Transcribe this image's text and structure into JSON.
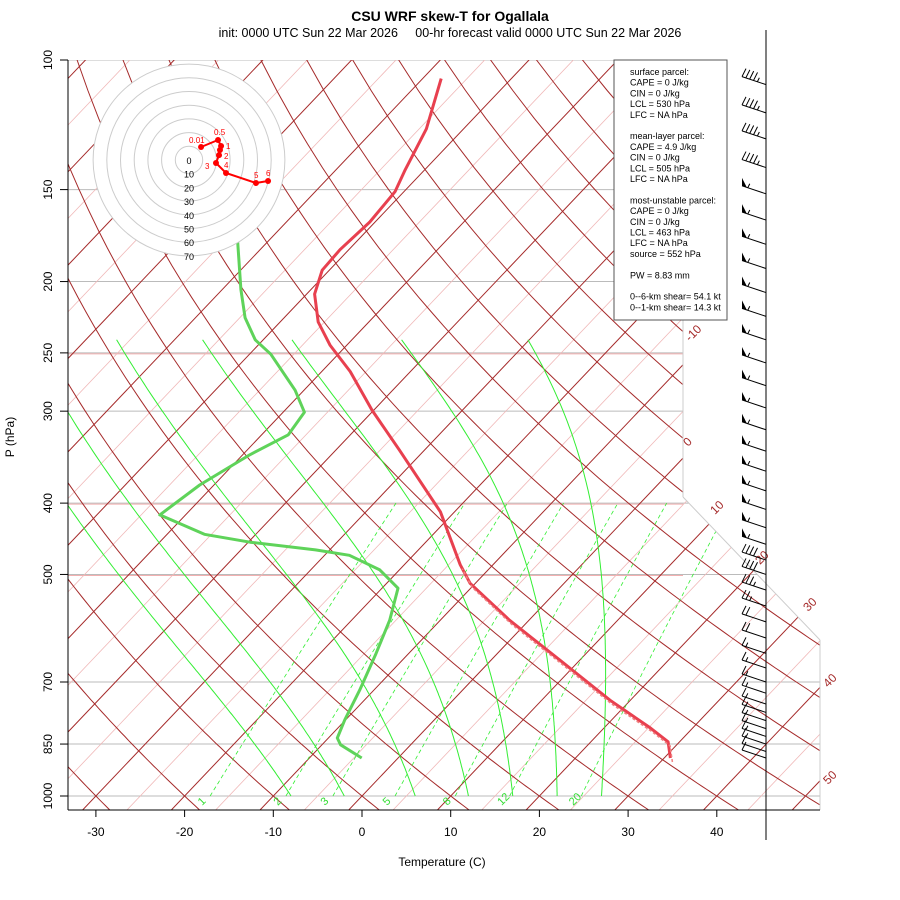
{
  "chart_data": {
    "type": "line",
    "title": "CSU WRF skew-T for Ogallala",
    "subtitle": "init: 0000 UTC Sun 22 Mar 2026     00-hr forecast valid 0000 UTC Sun 22 Mar 2026",
    "xlabel": "Temperature (C)",
    "ylabel": "P (hPa)",
    "xlim": [
      -33,
      50
    ],
    "ylim": [
      1000,
      100
    ],
    "x_ticks": [
      -30,
      -20,
      -10,
      0,
      10,
      20,
      30,
      40
    ],
    "p_ticks": [
      100,
      150,
      200,
      250,
      300,
      400,
      500,
      700,
      850,
      1000
    ],
    "isotherm_labels": [
      -10,
      0,
      10,
      20,
      30,
      40,
      50
    ],
    "mixing_ratio_labels": [
      1,
      2,
      3,
      5,
      8,
      12,
      20
    ],
    "series": [
      {
        "name": "temperature",
        "color": "#e8404f",
        "points": [
          [
            888,
            30.7
          ],
          [
            844,
            28.7
          ],
          [
            808,
            25.2
          ],
          [
            741,
            17.7
          ],
          [
            654,
            7.8
          ],
          [
            577,
            -2.2
          ],
          [
            514,
            -10.6
          ],
          [
            485,
            -13.7
          ],
          [
            411,
            -21.6
          ],
          [
            339,
            -32.8
          ],
          [
            299,
            -40.2
          ],
          [
            265,
            -46.8
          ],
          [
            244,
            -51.9
          ],
          [
            227,
            -55.7
          ],
          [
            208,
            -59.1
          ],
          [
            193,
            -60.8
          ],
          [
            181,
            -61.0
          ],
          [
            166,
            -60.6
          ],
          [
            151,
            -61.0
          ],
          [
            141,
            -62.2
          ],
          [
            124,
            -64.2
          ],
          [
            106,
            -67.9
          ]
        ]
      },
      {
        "name": "dewpoint",
        "color": "#5fd35a",
        "points": [
          [
            888,
            -4.1
          ],
          [
            852,
            -7.9
          ],
          [
            834,
            -9.0
          ],
          [
            788,
            -10.1
          ],
          [
            718,
            -11.6
          ],
          [
            643,
            -13.6
          ],
          [
            577,
            -15.7
          ],
          [
            522,
            -18.2
          ],
          [
            493,
            -22.2
          ],
          [
            471,
            -27.2
          ],
          [
            463,
            -31.6
          ],
          [
            452,
            -39.8
          ],
          [
            441,
            -45.8
          ],
          [
            415,
            -52.9
          ],
          [
            378,
            -51.6
          ],
          [
            344,
            -49.2
          ],
          [
            323,
            -47.0
          ],
          [
            301,
            -47.6
          ],
          [
            281,
            -51.0
          ],
          [
            251,
            -57.6
          ],
          [
            240,
            -60.9
          ],
          [
            224,
            -64.4
          ],
          [
            205,
            -67.9
          ],
          [
            176,
            -73.5
          ]
        ]
      }
    ],
    "hodograph": {
      "ring_labels": [
        "0",
        "10",
        "20",
        "30",
        "40",
        "50",
        "60",
        "70"
      ],
      "points": [
        {
          "u": 8.8,
          "v": 9.5,
          "label": "0.01"
        },
        {
          "u": 21.2,
          "v": 14.6,
          "label": "0.5"
        },
        {
          "u": 23.4,
          "v": 10.2,
          "label": "1"
        },
        {
          "u": 22.6,
          "v": 7.3,
          "label": ""
        },
        {
          "u": 21.9,
          "v": 3.6,
          "label": "2"
        },
        {
          "u": 19.7,
          "v": -2.2,
          "label": "3"
        },
        {
          "u": 27,
          "v": -9.5,
          "label": "4"
        },
        {
          "u": 48.9,
          "v": -16.8,
          "label": "5"
        },
        {
          "u": 57.7,
          "v": -15.3,
          "label": "6"
        }
      ]
    },
    "winds": [
      {
        "p": 108,
        "spd": 45
      },
      {
        "p": 118,
        "spd": 45
      },
      {
        "p": 128,
        "spd": 45
      },
      {
        "p": 140,
        "spd": 45
      },
      {
        "p": 152,
        "spd": 55
      },
      {
        "p": 165,
        "spd": 55
      },
      {
        "p": 178,
        "spd": 55
      },
      {
        "p": 192,
        "spd": 55
      },
      {
        "p": 207,
        "spd": 55
      },
      {
        "p": 223,
        "spd": 55
      },
      {
        "p": 240,
        "spd": 55
      },
      {
        "p": 258,
        "spd": 55
      },
      {
        "p": 277,
        "spd": 55
      },
      {
        "p": 297,
        "spd": 55
      },
      {
        "p": 318,
        "spd": 55
      },
      {
        "p": 340,
        "spd": 55
      },
      {
        "p": 362,
        "spd": 55
      },
      {
        "p": 385,
        "spd": 55
      },
      {
        "p": 408,
        "spd": 55
      },
      {
        "p": 432,
        "spd": 55
      },
      {
        "p": 455,
        "spd": 55
      },
      {
        "p": 478,
        "spd": 40
      },
      {
        "p": 500,
        "spd": 40
      },
      {
        "p": 525,
        "spd": 35
      },
      {
        "p": 552,
        "spd": 25
      },
      {
        "p": 580,
        "spd": 20
      },
      {
        "p": 610,
        "spd": 20
      },
      {
        "p": 640,
        "spd": 15
      },
      {
        "p": 670,
        "spd": 15
      },
      {
        "p": 700,
        "spd": 15
      },
      {
        "p": 725,
        "spd": 15
      },
      {
        "p": 750,
        "spd": 15
      },
      {
        "p": 770,
        "spd": 15
      },
      {
        "p": 790,
        "spd": 15
      },
      {
        "p": 810,
        "spd": 15
      },
      {
        "p": 830,
        "spd": 15
      },
      {
        "p": 850,
        "spd": 15
      },
      {
        "p": 870,
        "spd": 10
      },
      {
        "p": 888,
        "spd": 10
      }
    ],
    "info_box": [
      "surface parcel:",
      "CAPE = 0 J/kg",
      "CIN = 0 J/kg",
      "LCL = 530 hPa",
      "LFC = NA hPa",
      "",
      "mean-layer parcel:",
      "CAPE = 4.9 J/kg",
      "CIN = 0 J/kg",
      "LCL = 505 hPa",
      "LFC = NA hPa",
      "",
      "most-unstable parcel:",
      "CAPE = 0 J/kg",
      "CIN = 0 J/kg",
      "LCL = 463 hPa",
      "LFC = NA hPa",
      "source = 552 hPa",
      "",
      "PW =  8.83 mm",
      "",
      "0--6-km shear= 54.1 kt",
      "0--1-km shear= 14.3 kt"
    ],
    "colors": {
      "isotherm": "#a52a2a",
      "dry_adiabat": "#a52a2a",
      "moist": "#33ee33",
      "temp": "#e8404f",
      "dew": "#5fd35a",
      "hodo": "#ff0000"
    }
  }
}
